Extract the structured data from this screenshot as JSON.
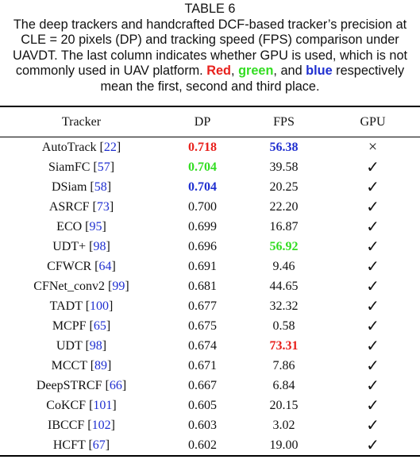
{
  "caption": {
    "label": "TABLE 6",
    "parts": [
      {
        "text": "The deep trackers and handcrafted DCF-based tracker’s precision at CLE = 20 pixels (DP) and tracking speed (FPS) comparison under UAVDT. The last column indicates whether GPU is used, which is not commonly used in UAV platform. "
      },
      {
        "text": "Red",
        "color": "#e8211d"
      },
      {
        "text": ", "
      },
      {
        "text": "green",
        "color": "#33dd22"
      },
      {
        "text": ", and "
      },
      {
        "text": "blue",
        "color": "#1f2fd0"
      },
      {
        "text": " respectively mean the first, second and third place."
      }
    ]
  },
  "table": {
    "header": [
      "Tracker",
      "DP",
      "FPS",
      "GPU"
    ],
    "ref_color": "#1f2fd0",
    "rows": [
      {
        "tracker": [
          "AutoTrack [",
          "22",
          "]"
        ],
        "dp": {
          "text": "0.718",
          "color": "#e8211d"
        },
        "fps": {
          "text": "56.38",
          "color": "#1f2fd0"
        },
        "gpu": "×"
      },
      {
        "tracker": [
          "SiamFC [",
          "57",
          "]"
        ],
        "dp": {
          "text": "0.704",
          "color": "#33dd22"
        },
        "fps": {
          "text": "39.58"
        },
        "gpu": "✓"
      },
      {
        "tracker": [
          "DSiam [",
          "58",
          "]"
        ],
        "dp": {
          "text": "0.704",
          "color": "#1f2fd0"
        },
        "fps": {
          "text": "20.25"
        },
        "gpu": "✓"
      },
      {
        "tracker": [
          "ASRCF [",
          "73",
          "]"
        ],
        "dp": {
          "text": "0.700"
        },
        "fps": {
          "text": "22.20"
        },
        "gpu": "✓"
      },
      {
        "tracker": [
          "ECO [",
          "95",
          "]"
        ],
        "dp": {
          "text": "0.699"
        },
        "fps": {
          "text": "16.87"
        },
        "gpu": "✓"
      },
      {
        "tracker": [
          "UDT+ [",
          "98",
          "]"
        ],
        "dp": {
          "text": "0.696"
        },
        "fps": {
          "text": "56.92",
          "color": "#33dd22"
        },
        "gpu": "✓"
      },
      {
        "tracker": [
          "CFWCR [",
          "64",
          "]"
        ],
        "dp": {
          "text": "0.691"
        },
        "fps": {
          "text": "9.46"
        },
        "gpu": "✓"
      },
      {
        "tracker": [
          "CFNet_conv2 [",
          "99",
          "]"
        ],
        "dp": {
          "text": "0.681"
        },
        "fps": {
          "text": "44.65"
        },
        "gpu": "✓"
      },
      {
        "tracker": [
          "TADT [",
          "100",
          "]"
        ],
        "dp": {
          "text": "0.677"
        },
        "fps": {
          "text": "32.32"
        },
        "gpu": "✓"
      },
      {
        "tracker": [
          "MCPF [",
          "65",
          "]"
        ],
        "dp": {
          "text": "0.675"
        },
        "fps": {
          "text": "0.58"
        },
        "gpu": "✓"
      },
      {
        "tracker": [
          "UDT [",
          "98",
          "]"
        ],
        "dp": {
          "text": "0.674"
        },
        "fps": {
          "text": "73.31",
          "color": "#e8211d"
        },
        "gpu": "✓"
      },
      {
        "tracker": [
          "MCCT [",
          "89",
          "]"
        ],
        "dp": {
          "text": "0.671"
        },
        "fps": {
          "text": "7.86"
        },
        "gpu": "✓"
      },
      {
        "tracker": [
          "DeepSTRCF [",
          "66",
          "]"
        ],
        "dp": {
          "text": "0.667"
        },
        "fps": {
          "text": "6.84"
        },
        "gpu": "✓"
      },
      {
        "tracker": [
          "CoKCF [",
          "101",
          "]"
        ],
        "dp": {
          "text": "0.605"
        },
        "fps": {
          "text": "20.15"
        },
        "gpu": "✓"
      },
      {
        "tracker": [
          "IBCCF [",
          "102",
          "]"
        ],
        "dp": {
          "text": "0.603"
        },
        "fps": {
          "text": "3.02"
        },
        "gpu": "✓"
      },
      {
        "tracker": [
          "HCFT [",
          "67",
          "]"
        ],
        "dp": {
          "text": "0.602"
        },
        "fps": {
          "text": "19.00"
        },
        "gpu": "✓"
      }
    ]
  }
}
